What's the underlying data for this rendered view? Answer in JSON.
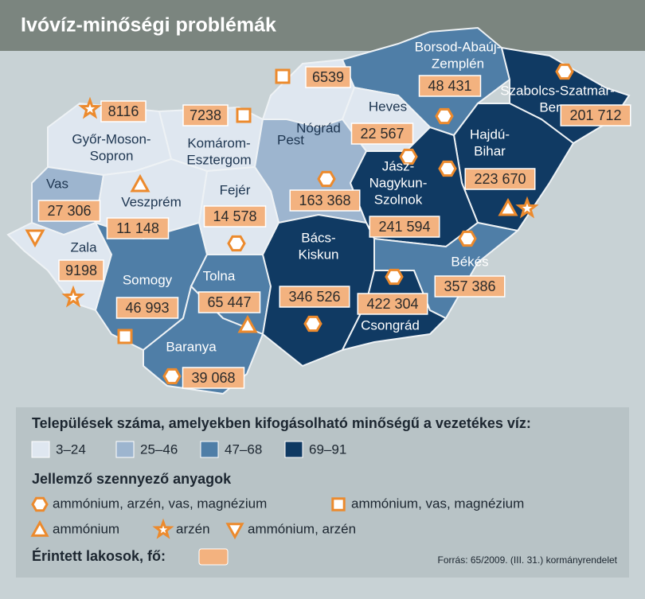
{
  "title": "Ivóvíz-minőségi problémák",
  "counties": [
    {
      "label": [
        "Győr-Moson-",
        "Sopron"
      ],
      "value": "8116",
      "color": "#dfe7f0",
      "symbols": [
        "star"
      ]
    },
    {
      "label": [
        "Komárom-",
        "Esztergom"
      ],
      "value": "7238",
      "color": "#dfe7f0",
      "symbols": [
        "square"
      ]
    },
    {
      "label": [
        "Nógrád"
      ],
      "value": "6539",
      "color": "#dfe7f0",
      "symbols": [
        "square"
      ]
    },
    {
      "label": [
        "Borsod-Abaúj-",
        "Zemplén"
      ],
      "value": "48 431",
      "color": "#4f7ea7",
      "symbols": [
        "hexagon"
      ]
    },
    {
      "label": [
        "Szabolcs-Szatmár-",
        "Bereg"
      ],
      "value": "201 712",
      "color": "#103a63",
      "symbols": [
        "hexagon"
      ]
    },
    {
      "label": [
        "Hajdú-",
        "Bihar"
      ],
      "value": "223 670",
      "color": "#103a63",
      "symbols": [
        "triangle",
        "star"
      ]
    },
    {
      "label": [
        "Heves"
      ],
      "value": "22 567",
      "color": "#dfe7f0",
      "symbols": [
        "hexagon"
      ]
    },
    {
      "label": [
        "Pest"
      ],
      "value": "163 368",
      "color": "#9db5cf",
      "symbols": [
        "hexagon"
      ]
    },
    {
      "label": [
        "Jász-",
        "Nagykun-",
        "Szolnok"
      ],
      "value": "241 594",
      "color": "#103a63",
      "symbols": [
        "hexagon"
      ]
    },
    {
      "label": [
        "Vas"
      ],
      "value": "27 306",
      "color": "#9db5cf",
      "symbols": [
        "inverted-triangle"
      ]
    },
    {
      "label": [
        "Veszprém"
      ],
      "value": "11 148",
      "color": "#dfe7f0",
      "symbols": [
        "triangle"
      ]
    },
    {
      "label": [
        "Fejér"
      ],
      "value": "14 578",
      "color": "#dfe7f0",
      "symbols": [
        "hexagon"
      ]
    },
    {
      "label": [
        "Zala"
      ],
      "value": "9198",
      "color": "#dfe7f0",
      "symbols": [
        "star"
      ]
    },
    {
      "label": [
        "Somogy"
      ],
      "value": "46 993",
      "color": "#4f7ea7",
      "symbols": [
        "square"
      ]
    },
    {
      "label": [
        "Tolna"
      ],
      "value": "65 447",
      "color": "#4f7ea7",
      "symbols": [
        "triangle"
      ]
    },
    {
      "label": [
        "Baranya"
      ],
      "value": "39 068",
      "color": "#4f7ea7",
      "symbols": [
        "hexagon"
      ]
    },
    {
      "label": [
        "Bács-",
        "Kiskun"
      ],
      "value": "346 526",
      "color": "#103a63",
      "symbols": [
        "hexagon"
      ]
    },
    {
      "label": [
        "Csongrád"
      ],
      "value": "422 304",
      "color": "#103a63",
      "symbols": [
        "hexagon"
      ]
    },
    {
      "label": [
        "Békés"
      ],
      "value": "357 386",
      "color": "#4f7ea7",
      "symbols": [
        "hexagon"
      ]
    }
  ],
  "legend": {
    "classes_title": "Települések száma, amelyekben kifogásolható minőségű a vezetékes víz:",
    "classes": [
      {
        "label": "3–24",
        "color": "#dfe7f0"
      },
      {
        "label": "25–46",
        "color": "#9db5cf"
      },
      {
        "label": "47–68",
        "color": "#4f7ea7"
      },
      {
        "label": "69–91",
        "color": "#103a63"
      }
    ],
    "symbols_title": "Jellemző szennyező anyagok",
    "symbols": [
      {
        "shape": "hexagon",
        "label": "ammónium, arzén, vas, magnézium"
      },
      {
        "shape": "square",
        "label": "ammónium, vas, magnézium"
      },
      {
        "shape": "triangle",
        "label": "ammónium"
      },
      {
        "shape": "star",
        "label": "arzén"
      },
      {
        "shape": "inverted-triangle",
        "label": "ammónium, arzén"
      }
    ],
    "population_title": "Érintett lakosok, fő:",
    "source": "Forrás: 65/2009. (III. 31.) kormányrendelet"
  }
}
